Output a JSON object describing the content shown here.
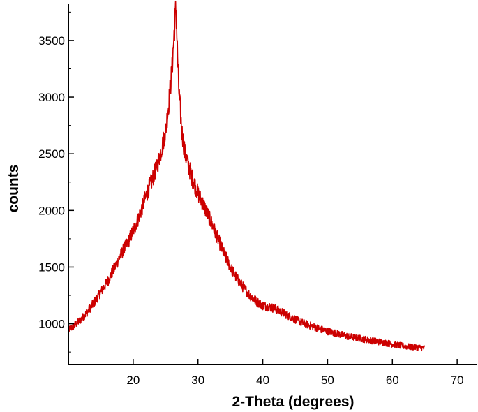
{
  "chart_data": {
    "type": "line",
    "title": "",
    "xlabel": "2-Theta (degrees)",
    "ylabel": "counts",
    "xlim": [
      10,
      73
    ],
    "ylim": [
      640,
      3820
    ],
    "x_ticks": [
      20,
      30,
      40,
      50,
      60,
      70
    ],
    "y_ticks": [
      1000,
      1500,
      2000,
      2500,
      3000,
      3500
    ],
    "x_tick_labels": [
      "20",
      "30",
      "40",
      "50",
      "60",
      "70"
    ],
    "y_tick_labels": [
      "1000",
      "1500",
      "2000",
      "2500",
      "3000",
      "3500"
    ],
    "grid": false,
    "legend": false,
    "series_color": "#cc0000",
    "series": [
      {
        "x": [
          10,
          11,
          12,
          13,
          14,
          15,
          16,
          17,
          18,
          19,
          20,
          21,
          22,
          23,
          24,
          25,
          25.5,
          26,
          26.3,
          26.6,
          27,
          27.5,
          28,
          29,
          30,
          31,
          32,
          33,
          34,
          35,
          36,
          37,
          38,
          39,
          40,
          41,
          42,
          43,
          44,
          45,
          46,
          47,
          48,
          49,
          50,
          51,
          52,
          53,
          54,
          55,
          56,
          57,
          58,
          59,
          60,
          61,
          62,
          63,
          64,
          65
        ],
        "y": [
          940,
          990,
          1040,
          1110,
          1190,
          1280,
          1370,
          1480,
          1600,
          1700,
          1820,
          1960,
          2130,
          2280,
          2450,
          2700,
          2950,
          3250,
          3550,
          3800,
          3100,
          2700,
          2500,
          2300,
          2150,
          2030,
          1900,
          1760,
          1620,
          1500,
          1400,
          1320,
          1250,
          1200,
          1160,
          1150,
          1130,
          1100,
          1070,
          1040,
          1010,
          990,
          970,
          950,
          935,
          920,
          905,
          890,
          880,
          870,
          860,
          850,
          840,
          830,
          820,
          810,
          800,
          795,
          790,
          785
        ]
      }
    ]
  }
}
